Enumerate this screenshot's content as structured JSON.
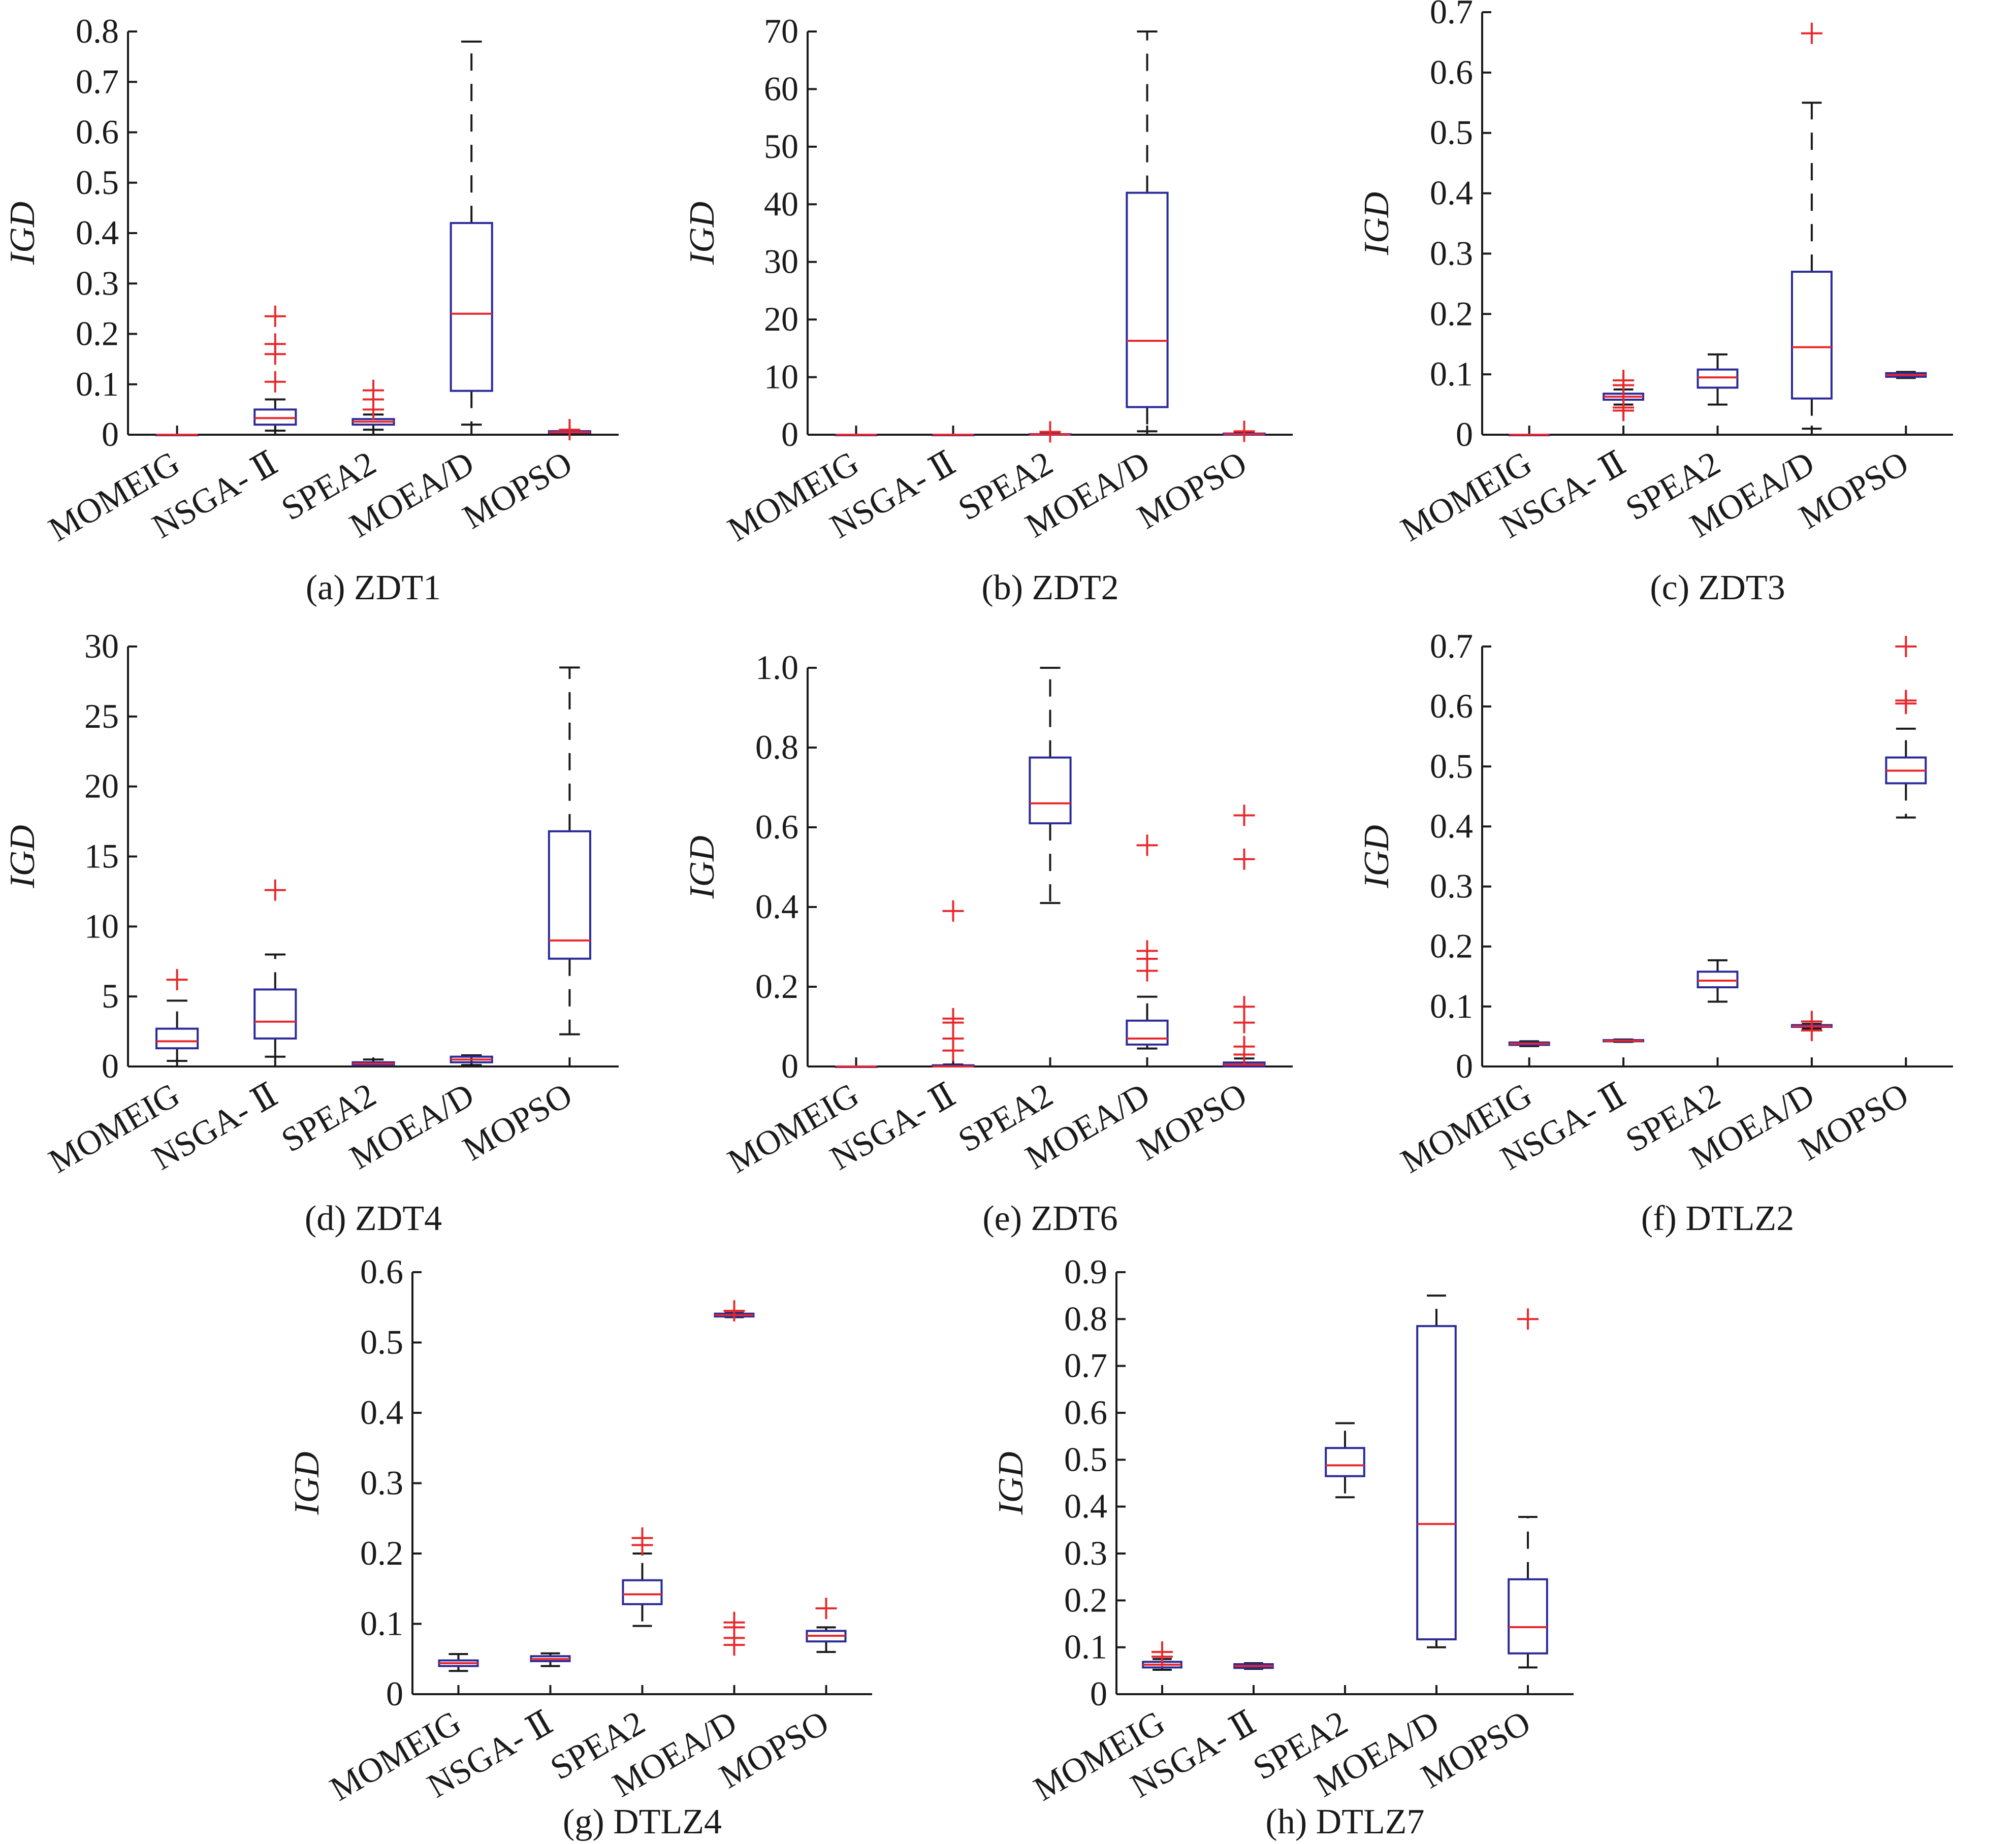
{
  "colors": {
    "axis": "#1a1a1a",
    "box": "#2a2a9a",
    "median": "#e8282b",
    "outlier": "#e8282b",
    "whisker": "#1a1a1a"
  },
  "chart_data": [
    {
      "type": "box",
      "caption": "(a) ZDT1",
      "ylabel": "IGD",
      "ylim": [
        0,
        0.8
      ],
      "yticks": [
        0,
        0.1,
        0.2,
        0.3,
        0.4,
        0.5,
        0.6,
        0.7,
        0.8
      ],
      "ytick_labels": [
        "0",
        "0.1",
        "0.2",
        "0.3",
        "0.4",
        "0.5",
        "0.6",
        "0.7",
        "0.8"
      ],
      "categories": [
        "MOMEIG",
        "NSGA- Ⅱ",
        "SPEA2",
        "MOEA/D",
        "MOPSO"
      ],
      "boxes": [
        {
          "q1": 0.0,
          "median": 0.0,
          "q3": 0.0,
          "whisker_low": 0.0,
          "whisker_high": 0.0,
          "outliers": []
        },
        {
          "q1": 0.02,
          "median": 0.033,
          "q3": 0.05,
          "whisker_low": 0.008,
          "whisker_high": 0.07,
          "outliers": [
            0.105,
            0.16,
            0.18,
            0.235
          ]
        },
        {
          "q1": 0.02,
          "median": 0.026,
          "q3": 0.031,
          "whisker_low": 0.01,
          "whisker_high": 0.04,
          "outliers": [
            0.05,
            0.07,
            0.088
          ]
        },
        {
          "q1": 0.087,
          "median": 0.24,
          "q3": 0.42,
          "whisker_low": 0.02,
          "whisker_high": 0.78,
          "outliers": []
        },
        {
          "q1": 0.004,
          "median": 0.005,
          "q3": 0.007,
          "whisker_low": 0.003,
          "whisker_high": 0.008,
          "outliers": [
            0.01
          ]
        }
      ]
    },
    {
      "type": "box",
      "caption": "(b) ZDT2",
      "ylabel": "IGD",
      "ylim": [
        0,
        70
      ],
      "yticks": [
        0,
        10,
        20,
        30,
        40,
        50,
        60,
        70
      ],
      "ytick_labels": [
        "0",
        "10",
        "20",
        "30",
        "40",
        "50",
        "60",
        "70"
      ],
      "categories": [
        "MOMEIG",
        "NSGA- Ⅱ",
        "SPEA2",
        "MOEA/D",
        "MOPSO"
      ],
      "boxes": [
        {
          "q1": 0.0,
          "median": 0.0,
          "q3": 0.0,
          "whisker_low": 0.0,
          "whisker_high": 0.0,
          "outliers": []
        },
        {
          "q1": 0.0,
          "median": 0.0,
          "q3": 0.0,
          "whisker_low": 0.0,
          "whisker_high": 0.0,
          "outliers": []
        },
        {
          "q1": 0.0,
          "median": 0.05,
          "q3": 0.1,
          "whisker_low": 0.0,
          "whisker_high": 0.2,
          "outliers": [
            0.5
          ]
        },
        {
          "q1": 4.8,
          "median": 16.3,
          "q3": 42.0,
          "whisker_low": 0.6,
          "whisker_high": 70.0,
          "outliers": []
        },
        {
          "q1": 0.0,
          "median": 0.1,
          "q3": 0.2,
          "whisker_low": 0.0,
          "whisker_high": 0.3,
          "outliers": [
            0.6
          ]
        }
      ]
    },
    {
      "type": "box",
      "caption": "(c) ZDT3",
      "ylabel": "IGD",
      "ylim": [
        0,
        0.7
      ],
      "yticks": [
        0,
        0.1,
        0.2,
        0.3,
        0.4,
        0.5,
        0.6,
        0.7
      ],
      "ytick_labels": [
        "0",
        "0.1",
        "0.2",
        "0.3",
        "0.4",
        "0.5",
        "0.6",
        "0.7"
      ],
      "categories": [
        "MOMEIG",
        "NSGA- Ⅱ",
        "SPEA2",
        "MOEA/D",
        "MOPSO"
      ],
      "boxes": [
        {
          "q1": 0.0,
          "median": 0.0,
          "q3": 0.0,
          "whisker_low": 0.0,
          "whisker_high": 0.0,
          "outliers": []
        },
        {
          "q1": 0.058,
          "median": 0.063,
          "q3": 0.068,
          "whisker_low": 0.05,
          "whisker_high": 0.075,
          "outliers": [
            0.04,
            0.045,
            0.082,
            0.09
          ]
        },
        {
          "q1": 0.078,
          "median": 0.095,
          "q3": 0.108,
          "whisker_low": 0.05,
          "whisker_high": 0.133,
          "outliers": []
        },
        {
          "q1": 0.06,
          "median": 0.145,
          "q3": 0.27,
          "whisker_low": 0.01,
          "whisker_high": 0.55,
          "outliers": [
            0.665
          ]
        },
        {
          "q1": 0.096,
          "median": 0.099,
          "q3": 0.102,
          "whisker_low": 0.094,
          "whisker_high": 0.104,
          "outliers": []
        }
      ]
    },
    {
      "type": "box",
      "caption": "(d) ZDT4",
      "ylabel": "IGD",
      "ylim": [
        0,
        30
      ],
      "yticks": [
        0,
        5,
        10,
        15,
        20,
        25,
        30
      ],
      "ytick_labels": [
        "0",
        "5",
        "10",
        "15",
        "20",
        "25",
        "30"
      ],
      "categories": [
        "MOMEIG",
        "NSGA- Ⅱ",
        "SPEA2",
        "MOEA/D",
        "MOPSO"
      ],
      "boxes": [
        {
          "q1": 1.3,
          "median": 1.8,
          "q3": 2.7,
          "whisker_low": 0.4,
          "whisker_high": 4.7,
          "outliers": [
            6.2
          ]
        },
        {
          "q1": 2.0,
          "median": 3.2,
          "q3": 5.5,
          "whisker_low": 0.7,
          "whisker_high": 8.0,
          "outliers": [
            12.6
          ]
        },
        {
          "q1": 0.1,
          "median": 0.2,
          "q3": 0.3,
          "whisker_low": 0.05,
          "whisker_high": 0.5,
          "outliers": []
        },
        {
          "q1": 0.3,
          "median": 0.5,
          "q3": 0.7,
          "whisker_low": 0.1,
          "whisker_high": 0.8,
          "outliers": []
        },
        {
          "q1": 7.7,
          "median": 9.0,
          "q3": 16.8,
          "whisker_low": 2.3,
          "whisker_high": 28.5,
          "outliers": []
        }
      ]
    },
    {
      "type": "box",
      "caption": "(e) ZDT6",
      "ylabel": "IGD",
      "ylim": [
        0,
        1.0
      ],
      "yticks": [
        0,
        0.2,
        0.4,
        0.6,
        0.8,
        1.0
      ],
      "ytick_labels": [
        "0",
        "0.2",
        "0.4",
        "0.6",
        "0.8",
        "1.0"
      ],
      "categories": [
        "MOMEIG",
        "NSGA- Ⅱ",
        "SPEA2",
        "MOEA/D",
        "MOPSO"
      ],
      "boxes": [
        {
          "q1": 0.0,
          "median": 0.0,
          "q3": 0.0,
          "whisker_low": 0.0,
          "whisker_high": 0.0,
          "outliers": []
        },
        {
          "q1": 0.0,
          "median": 0.0,
          "q3": 0.003,
          "whisker_low": 0.0,
          "whisker_high": 0.005,
          "outliers": [
            0.04,
            0.07,
            0.11,
            0.12,
            0.39
          ]
        },
        {
          "q1": 0.61,
          "median": 0.66,
          "q3": 0.775,
          "whisker_low": 0.41,
          "whisker_high": 1.0,
          "outliers": []
        },
        {
          "q1": 0.055,
          "median": 0.07,
          "q3": 0.115,
          "whisker_low": 0.045,
          "whisker_high": 0.175,
          "outliers": [
            0.24,
            0.27,
            0.29,
            0.555
          ]
        },
        {
          "q1": 0.0,
          "median": 0.005,
          "q3": 0.01,
          "whisker_low": 0.0,
          "whisker_high": 0.02,
          "outliers": [
            0.03,
            0.05,
            0.11,
            0.15,
            0.52,
            0.63
          ]
        }
      ]
    },
    {
      "type": "box",
      "caption": "(f) DTLZ2",
      "ylabel": "IGD",
      "ylim": [
        0,
        0.7
      ],
      "yticks": [
        0,
        0.1,
        0.2,
        0.3,
        0.4,
        0.5,
        0.6,
        0.7
      ],
      "ytick_labels": [
        "0",
        "0.1",
        "0.2",
        "0.3",
        "0.4",
        "0.5",
        "0.6",
        "0.7"
      ],
      "categories": [
        "MOMEIG",
        "NSGA- Ⅱ",
        "SPEA2",
        "MOEA/D",
        "MOPSO"
      ],
      "boxes": [
        {
          "q1": 0.036,
          "median": 0.038,
          "q3": 0.04,
          "whisker_low": 0.034,
          "whisker_high": 0.042,
          "outliers": []
        },
        {
          "q1": 0.042,
          "median": 0.043,
          "q3": 0.044,
          "whisker_low": 0.041,
          "whisker_high": 0.045,
          "outliers": []
        },
        {
          "q1": 0.132,
          "median": 0.143,
          "q3": 0.158,
          "whisker_low": 0.108,
          "whisker_high": 0.177,
          "outliers": []
        },
        {
          "q1": 0.066,
          "median": 0.067,
          "q3": 0.069,
          "whisker_low": 0.063,
          "whisker_high": 0.071,
          "outliers": [
            0.06,
            0.075
          ]
        },
        {
          "q1": 0.472,
          "median": 0.493,
          "q3": 0.515,
          "whisker_low": 0.415,
          "whisker_high": 0.563,
          "outliers": [
            0.605,
            0.61,
            0.7
          ]
        }
      ]
    },
    {
      "type": "box",
      "caption": "(g) DTLZ4",
      "ylabel": "IGD",
      "ylim": [
        0,
        0.6
      ],
      "yticks": [
        0,
        0.1,
        0.2,
        0.3,
        0.4,
        0.5,
        0.6
      ],
      "ytick_labels": [
        "0",
        "0.1",
        "0.2",
        "0.3",
        "0.4",
        "0.5",
        "0.6"
      ],
      "categories": [
        "MOMEIG",
        "NSGA- Ⅱ",
        "SPEA2",
        "MOEA/D",
        "MOPSO"
      ],
      "boxes": [
        {
          "q1": 0.04,
          "median": 0.044,
          "q3": 0.048,
          "whisker_low": 0.033,
          "whisker_high": 0.057,
          "outliers": []
        },
        {
          "q1": 0.047,
          "median": 0.05,
          "q3": 0.054,
          "whisker_low": 0.04,
          "whisker_high": 0.058,
          "outliers": []
        },
        {
          "q1": 0.128,
          "median": 0.142,
          "q3": 0.162,
          "whisker_low": 0.097,
          "whisker_high": 0.2,
          "outliers": [
            0.212,
            0.222
          ]
        },
        {
          "q1": 0.537,
          "median": 0.539,
          "q3": 0.541,
          "whisker_low": 0.536,
          "whisker_high": 0.542,
          "outliers": [
            0.07,
            0.08,
            0.095,
            0.102,
            0.545
          ]
        },
        {
          "q1": 0.075,
          "median": 0.083,
          "q3": 0.09,
          "whisker_low": 0.06,
          "whisker_high": 0.095,
          "outliers": [
            0.122
          ]
        }
      ]
    },
    {
      "type": "box",
      "caption": "(h) DTLZ7",
      "ylabel": "IGD",
      "ylim": [
        0,
        0.9
      ],
      "yticks": [
        0,
        0.1,
        0.2,
        0.3,
        0.4,
        0.5,
        0.6,
        0.7,
        0.8,
        0.9
      ],
      "ytick_labels": [
        "0",
        "0.1",
        "0.2",
        "0.3",
        "0.4",
        "0.5",
        "0.6",
        "0.7",
        "0.8",
        "0.9"
      ],
      "categories": [
        "MOMEIG",
        "NSGA- Ⅱ",
        "SPEA2",
        "MOEA/D",
        "MOPSO"
      ],
      "boxes": [
        {
          "q1": 0.057,
          "median": 0.063,
          "q3": 0.069,
          "whisker_low": 0.052,
          "whisker_high": 0.075,
          "outliers": [
            0.08,
            0.09
          ]
        },
        {
          "q1": 0.056,
          "median": 0.06,
          "q3": 0.064,
          "whisker_low": 0.054,
          "whisker_high": 0.066,
          "outliers": []
        },
        {
          "q1": 0.465,
          "median": 0.488,
          "q3": 0.525,
          "whisker_low": 0.42,
          "whisker_high": 0.578,
          "outliers": []
        },
        {
          "q1": 0.117,
          "median": 0.363,
          "q3": 0.785,
          "whisker_low": 0.1,
          "whisker_high": 0.85,
          "outliers": []
        },
        {
          "q1": 0.087,
          "median": 0.143,
          "q3": 0.245,
          "whisker_low": 0.057,
          "whisker_high": 0.378,
          "outliers": [
            0.8
          ]
        }
      ]
    }
  ]
}
